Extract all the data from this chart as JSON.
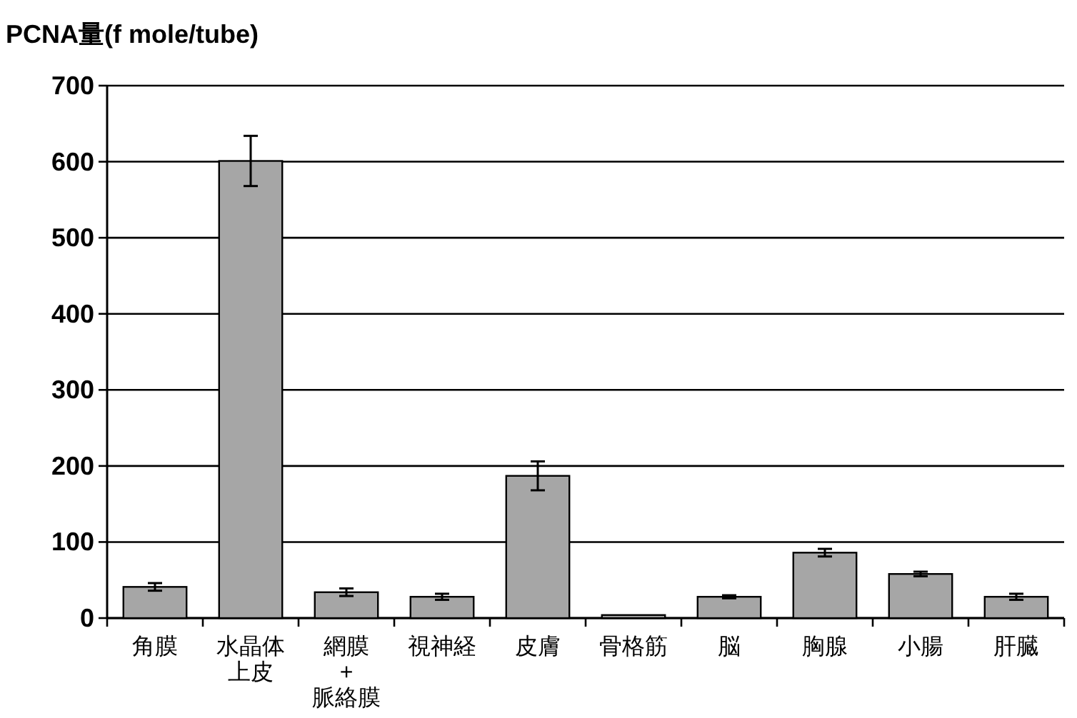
{
  "chart_data": {
    "type": "bar",
    "ylabel": "PCNA量(f mole/tube)",
    "categories": [
      "角膜",
      "水晶体上皮",
      "網膜\n+\n脈絡膜",
      "視神経",
      "皮膚",
      "骨格筋",
      "脳",
      "胸腺",
      "小腸",
      "肝臓"
    ],
    "values": [
      41,
      601,
      34,
      28,
      187,
      4,
      28,
      86,
      58,
      28
    ],
    "errors": [
      5,
      33,
      5,
      4,
      19,
      null,
      2,
      5,
      3,
      4
    ],
    "color": "#a6a6a6",
    "ylim": [
      0,
      700
    ],
    "yticks": [
      0,
      100,
      200,
      300,
      400,
      500,
      600,
      700
    ],
    "grid": "y"
  }
}
